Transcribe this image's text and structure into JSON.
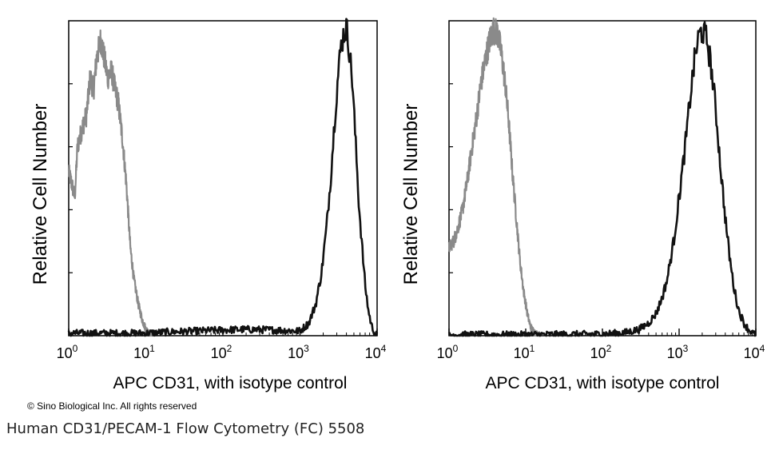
{
  "chart_data": [
    {
      "type": "line",
      "xscale": "log",
      "xlim": [
        1,
        10000
      ],
      "xticks": [
        1,
        10,
        100,
        1000,
        10000
      ],
      "xtick_labels": [
        {
          "base": "10",
          "exp": "0"
        },
        {
          "base": "10",
          "exp": "1"
        },
        {
          "base": "10",
          "exp": "2"
        },
        {
          "base": "10",
          "exp": "3"
        },
        {
          "base": "10",
          "exp": "4"
        }
      ],
      "xlabel": "APC CD31, with isotype control",
      "ylabel": "Relative Cell Number",
      "ylim": [
        0,
        100
      ],
      "series": [
        {
          "role": "isotype control",
          "color": "#8a8a8a",
          "x": [
            1,
            1.1,
            1.2,
            1.3,
            1.5,
            1.7,
            1.9,
            2.1,
            2.3,
            2.6,
            2.9,
            3.2,
            3.6,
            4.0,
            4.4,
            5.0,
            5.6,
            6.3,
            7.0,
            8.0,
            9.0,
            10.0,
            11.0,
            12.0,
            13.0
          ],
          "y": [
            52,
            48,
            44,
            60,
            66,
            70,
            82,
            78,
            88,
            94,
            88,
            82,
            84,
            78,
            74,
            62,
            48,
            28,
            18,
            10,
            5,
            2,
            1,
            0.5,
            0
          ]
        },
        {
          "role": "APC CD31",
          "color": "#111111",
          "x": [
            1,
            10,
            20,
            50,
            100,
            200,
            500,
            1000,
            1300,
            1600,
            1900,
            2200,
            2500,
            2800,
            3100,
            3400,
            3700,
            4000,
            4400,
            4800,
            5300,
            5800,
            6400,
            7000,
            7700,
            8500,
            9300,
            10000
          ],
          "y": [
            0.8,
            0.8,
            1.2,
            1.5,
            1.8,
            2,
            1.8,
            1.5,
            4,
            10,
            20,
            34,
            50,
            68,
            82,
            92,
            96,
            98,
            90,
            80,
            60,
            42,
            28,
            16,
            8,
            3,
            1,
            0
          ]
        }
      ]
    },
    {
      "type": "line",
      "xscale": "log",
      "xlim": [
        1,
        10000
      ],
      "xticks": [
        1,
        10,
        100,
        1000,
        10000
      ],
      "xtick_labels": [
        {
          "base": "10",
          "exp": "0"
        },
        {
          "base": "10",
          "exp": "1"
        },
        {
          "base": "10",
          "exp": "2"
        },
        {
          "base": "10",
          "exp": "3"
        },
        {
          "base": "10",
          "exp": "4"
        }
      ],
      "xlabel": "APC CD31, with isotype control",
      "ylabel": "Relative Cell Number",
      "ylim": [
        0,
        100
      ],
      "series": [
        {
          "role": "isotype control",
          "color": "#8a8a8a",
          "x": [
            1,
            1.15,
            1.3,
            1.5,
            1.75,
            2.0,
            2.3,
            2.6,
            3.0,
            3.4,
            3.8,
            4.3,
            4.8,
            5.4,
            6.0,
            6.7,
            7.5,
            8.4,
            9.4,
            10.5,
            11.5,
            12.5,
            13.5,
            14.5,
            15.5
          ],
          "y": [
            28,
            30,
            34,
            40,
            50,
            60,
            70,
            80,
            88,
            94,
            97,
            96,
            90,
            80,
            68,
            52,
            38,
            24,
            14,
            7,
            3,
            1.5,
            0.8,
            0.3,
            0
          ]
        },
        {
          "role": "APC CD31",
          "color": "#111111",
          "x": [
            1,
            10,
            100,
            200,
            300,
            400,
            500,
            600,
            700,
            850,
            1000,
            1200,
            1400,
            1600,
            1800,
            2000,
            2300,
            2600,
            3000,
            3400,
            3900,
            4500,
            5200,
            6000,
            7000,
            8000,
            9000,
            10000
          ],
          "y": [
            0.3,
            0.3,
            0.5,
            1,
            2,
            4,
            7,
            12,
            18,
            30,
            44,
            60,
            76,
            88,
            95,
            97,
            94,
            86,
            72,
            56,
            40,
            26,
            15,
            8,
            4,
            2,
            1,
            0
          ]
        }
      ]
    }
  ],
  "copyright": "© Sino Biological Inc. All rights reserved",
  "caption": "Human CD31/PECAM-1 Flow Cytometry (FC) 5508"
}
